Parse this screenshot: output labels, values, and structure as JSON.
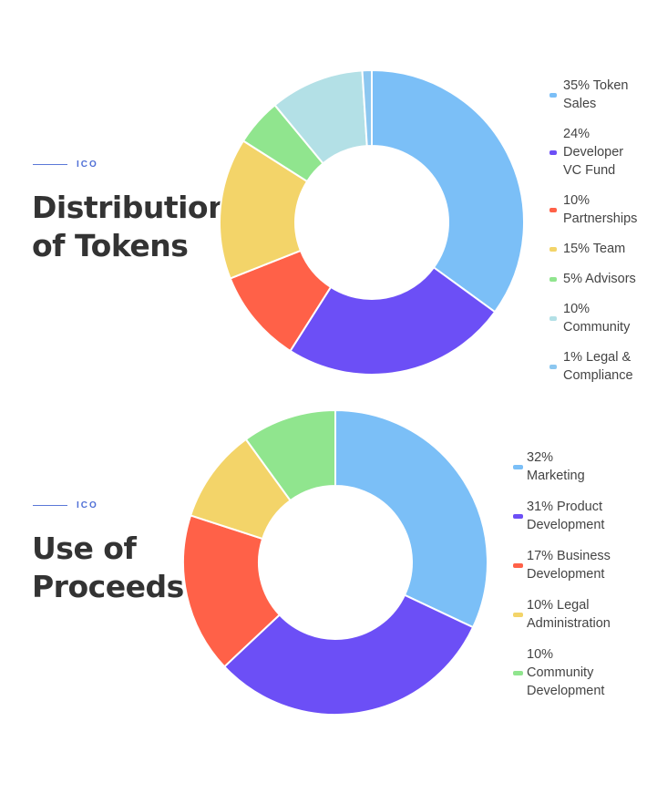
{
  "charts": [
    {
      "eyebrow": "ICO",
      "title_lines": [
        "Distribution",
        "of Tokens"
      ]
    },
    {
      "eyebrow": "ICO",
      "title_lines": [
        "Use of",
        "Proceeds"
      ]
    }
  ],
  "chart_data": [
    {
      "type": "pie",
      "subtype": "donut",
      "legend_position": "right",
      "labels": [
        "Token Sales",
        "Developer VC Fund",
        "Partnerships",
        "Team",
        "Advisors",
        "Community",
        "Legal & Compliance"
      ],
      "values": [
        35,
        24,
        10,
        15,
        5,
        10,
        1
      ],
      "colors": [
        "#7bbff7",
        "#6c4ff6",
        "#ff6148",
        "#f3d469",
        "#90e58e",
        "#b3e0e6",
        "#8cc7f0"
      ],
      "legend": [
        {
          "lines": [
            "35% Token",
            "Sales"
          ]
        },
        {
          "lines": [
            "24%",
            "Developer",
            "VC Fund"
          ]
        },
        {
          "lines": [
            "10%",
            "Partnerships"
          ]
        },
        {
          "lines": [
            "15% Team"
          ]
        },
        {
          "lines": [
            "5% Advisors"
          ]
        },
        {
          "lines": [
            "10%",
            "Community"
          ]
        },
        {
          "lines": [
            "1% Legal &",
            "Compliance"
          ]
        }
      ]
    },
    {
      "type": "pie",
      "subtype": "donut",
      "legend_position": "right",
      "labels": [
        "Marketing",
        "Product Development",
        "Business Development",
        "Legal Administration",
        "Community Development"
      ],
      "values": [
        32,
        31,
        17,
        10,
        10
      ],
      "colors": [
        "#7bbff7",
        "#6c4ff6",
        "#ff6148",
        "#f3d469",
        "#90e58e"
      ],
      "legend": [
        {
          "lines": [
            "32%",
            "Marketing"
          ]
        },
        {
          "lines": [
            "31% Product",
            "Development"
          ]
        },
        {
          "lines": [
            "17% Business",
            "Development"
          ]
        },
        {
          "lines": [
            "10% Legal",
            "Administration"
          ]
        },
        {
          "lines": [
            "10%",
            "Community",
            "Development"
          ]
        }
      ]
    }
  ]
}
